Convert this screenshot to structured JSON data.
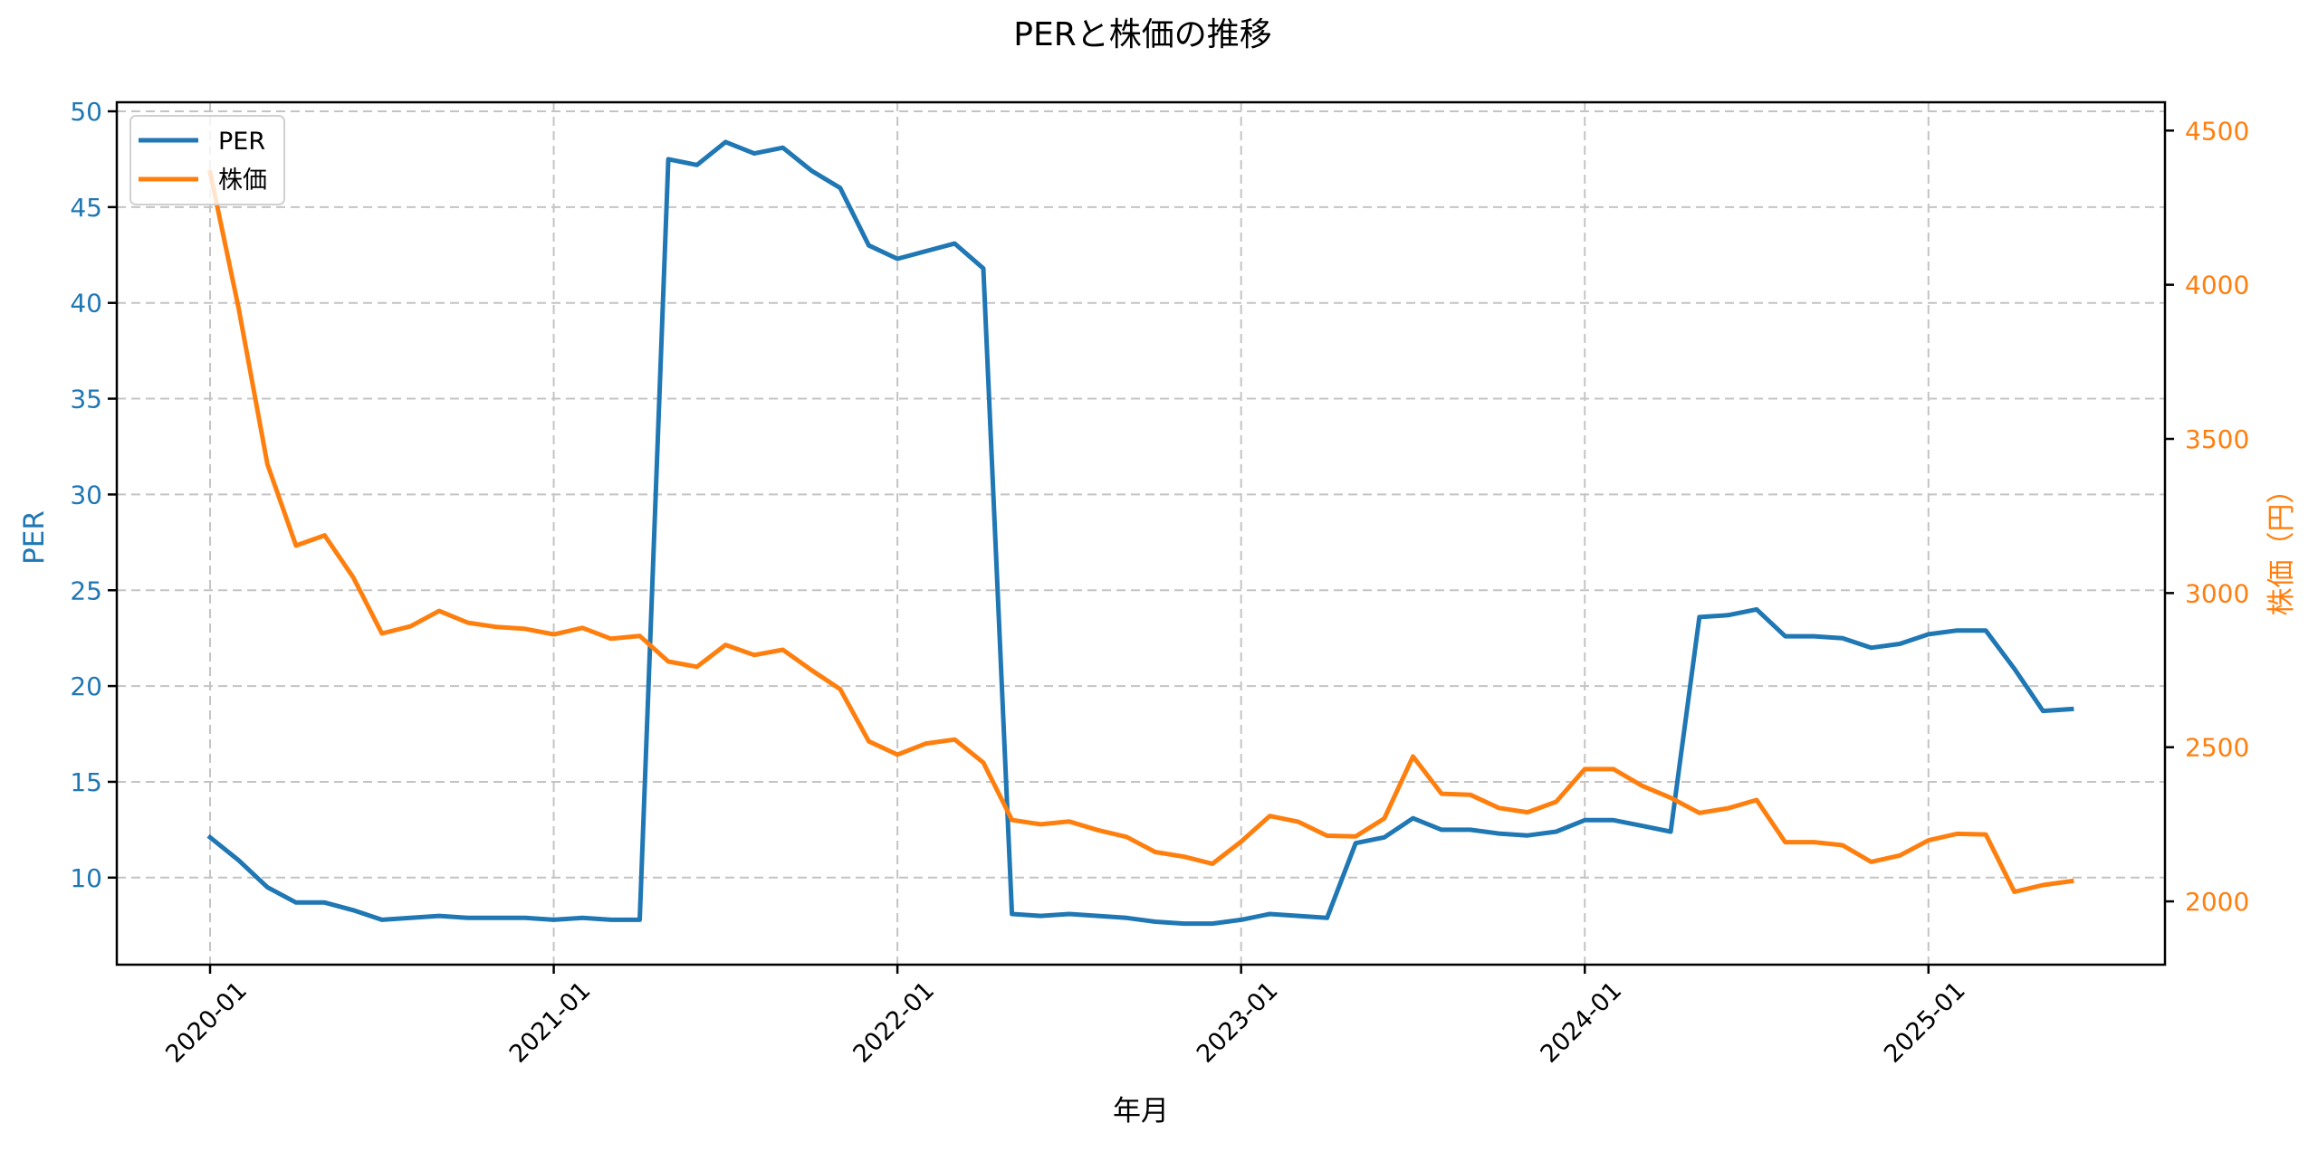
{
  "chart_data": {
    "type": "line",
    "title": "PERと株価の推移",
    "xlabel": "年月",
    "ylabel_left": "PER",
    "ylabel_right": "株価（円）",
    "ylim_left": [
      5.2,
      50.8
    ],
    "ylim_right": [
      1800,
      4570
    ],
    "yticks_left": [
      10,
      15,
      20,
      25,
      30,
      35,
      40,
      45,
      50
    ],
    "yticks_right": [
      2000,
      2500,
      3000,
      3500,
      4000,
      4500
    ],
    "xtick_labels": [
      "2020-01",
      "2021-01",
      "2022-01",
      "2023-01",
      "2024-01",
      "2025-01"
    ],
    "xtick_rotation": 45,
    "grid": true,
    "legend_position": "upper left",
    "x": [
      "2020-01",
      "2020-02",
      "2020-03",
      "2020-04",
      "2020-05",
      "2020-06",
      "2020-07",
      "2020-08",
      "2020-09",
      "2020-10",
      "2020-11",
      "2020-12",
      "2021-01",
      "2021-02",
      "2021-03",
      "2021-04",
      "2021-05",
      "2021-06",
      "2021-07",
      "2021-08",
      "2021-09",
      "2021-10",
      "2021-11",
      "2021-12",
      "2022-01",
      "2022-02",
      "2022-03",
      "2022-04",
      "2022-05",
      "2022-06",
      "2022-07",
      "2022-08",
      "2022-09",
      "2022-10",
      "2022-11",
      "2022-12",
      "2023-01",
      "2023-02",
      "2023-03",
      "2023-04",
      "2023-05",
      "2023-06",
      "2023-07",
      "2023-08",
      "2023-09",
      "2023-10",
      "2023-11",
      "2023-12",
      "2024-01",
      "2024-02",
      "2024-03",
      "2024-04",
      "2024-05",
      "2024-06",
      "2024-07",
      "2024-08",
      "2024-09",
      "2024-10",
      "2024-11",
      "2024-12",
      "2025-01",
      "2025-02",
      "2025-03",
      "2025-04",
      "2025-05",
      "2025-06"
    ],
    "series": [
      {
        "name": "PER",
        "axis": "left",
        "color": "#1f77b4",
        "values": [
          12.1,
          10.9,
          9.5,
          8.7,
          8.7,
          8.3,
          7.8,
          7.9,
          8.0,
          7.9,
          7.9,
          7.9,
          7.8,
          7.9,
          7.8,
          7.8,
          47.5,
          47.2,
          48.4,
          47.8,
          48.1,
          46.9,
          46.0,
          43.0,
          42.3,
          42.7,
          43.1,
          41.8,
          8.1,
          8.0,
          8.1,
          8.0,
          7.9,
          7.7,
          7.6,
          7.6,
          7.8,
          8.1,
          8.0,
          7.9,
          11.8,
          12.1,
          13.1,
          12.5,
          12.5,
          12.3,
          12.2,
          12.4,
          13.0,
          13.0,
          12.7,
          12.4,
          23.6,
          23.7,
          24.0,
          22.6,
          22.6,
          22.5,
          22.0,
          22.2,
          22.7,
          22.9,
          22.9,
          20.9,
          18.7,
          18.8
        ]
      },
      {
        "name": "株価",
        "axis": "right",
        "color": "#ff7f0e",
        "values": [
          4365,
          3923,
          3418,
          3154,
          3187,
          3051,
          2869,
          2892,
          2942,
          2904,
          2890,
          2884,
          2866,
          2887,
          2852,
          2861,
          2778,
          2761,
          2832,
          2799,
          2816,
          2750,
          2688,
          2519,
          2476,
          2512,
          2525,
          2450,
          2264,
          2250,
          2259,
          2231,
          2209,
          2160,
          2145,
          2122,
          2194,
          2277,
          2258,
          2213,
          2211,
          2269,
          2470,
          2349,
          2346,
          2303,
          2289,
          2323,
          2429,
          2429,
          2375,
          2336,
          2287,
          2302,
          2329,
          2192,
          2192,
          2182,
          2128,
          2149,
          2198,
          2219,
          2217,
          2031,
          2053,
          2066
        ]
      }
    ]
  },
  "legend": {
    "items": [
      {
        "label": "PER",
        "color": "#1f77b4"
      },
      {
        "label": "株価",
        "color": "#ff7f0e"
      }
    ]
  }
}
